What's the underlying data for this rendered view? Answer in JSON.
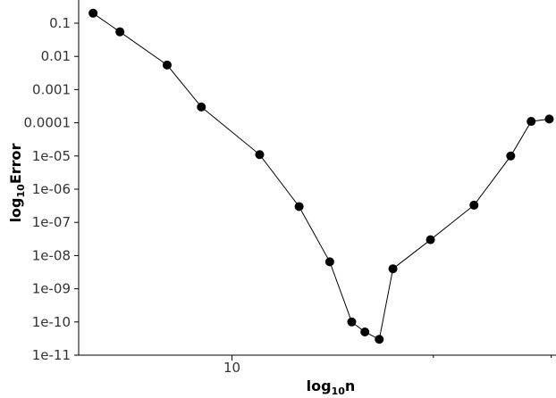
{
  "chart_data": {
    "type": "line",
    "xlabel": {
      "base": "log",
      "sub": "10",
      "rest": "n"
    },
    "ylabel": {
      "base": "log",
      "sub": "10",
      "rest": "Error"
    },
    "x_scale": "log",
    "y_scale": "log",
    "xlim": [
      5.9,
      30.5
    ],
    "ylim": [
      1e-11,
      0.5
    ],
    "grid": false,
    "x_ticks": [
      {
        "value": 10,
        "label": "10"
      }
    ],
    "x_minor_ticks": [
      20,
      30
    ],
    "y_ticks": [
      {
        "value": 0.1,
        "label": "0.1"
      },
      {
        "value": 0.01,
        "label": "0.01"
      },
      {
        "value": 0.001,
        "label": "0.001"
      },
      {
        "value": 0.0001,
        "label": "0.0001"
      },
      {
        "value": 1e-05,
        "label": "1e-05"
      },
      {
        "value": 1e-06,
        "label": "1e-06"
      },
      {
        "value": 1e-07,
        "label": "1e-07"
      },
      {
        "value": 1e-08,
        "label": "1e-08"
      },
      {
        "value": 1e-09,
        "label": "1e-09"
      },
      {
        "value": 1e-10,
        "label": "1e-10"
      },
      {
        "value": 1e-11,
        "label": "1e-11"
      }
    ],
    "series": [
      {
        "color": "#000000",
        "x": [
          6.2,
          6.8,
          8.0,
          9.0,
          11.0,
          12.6,
          14.0,
          15.1,
          15.8,
          16.6,
          17.4,
          19.8,
          23.0,
          26.1,
          28.0,
          29.8
        ],
        "y": [
          0.2,
          0.055,
          0.0055,
          0.0003,
          1.1e-05,
          3e-07,
          6.5e-09,
          1e-10,
          5e-11,
          3e-11,
          4e-09,
          3e-08,
          3.3e-07,
          1e-05,
          0.00011,
          0.00013
        ]
      }
    ]
  }
}
